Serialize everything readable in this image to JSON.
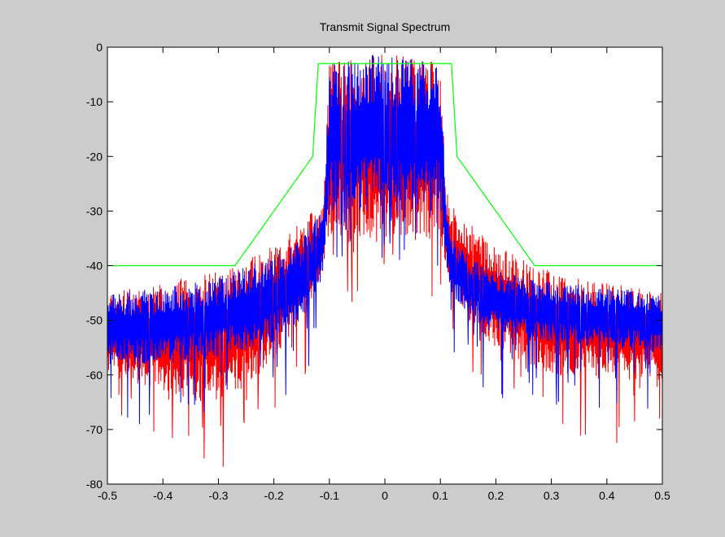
{
  "window": {
    "background": "#cccccc",
    "axes_background": "#ffffff"
  },
  "chart_data": {
    "type": "line",
    "title": "Transmit Signal Spectrum",
    "xlabel": "",
    "ylabel": "",
    "xlim": [
      -0.5,
      0.5
    ],
    "ylim": [
      -80,
      0
    ],
    "xticks": [
      "-0.5",
      "-0.4",
      "-0.3",
      "-0.2",
      "-0.1",
      "0",
      "0.1",
      "0.2",
      "0.3",
      "0.4",
      "0.5"
    ],
    "yticks": [
      "0",
      "-10",
      "-20",
      "-30",
      "-40",
      "-50",
      "-60",
      "-70",
      "-80"
    ],
    "grid": false,
    "series": [
      {
        "color": "#ff0000",
        "style": "noisy-spectrum",
        "envelope": {
          "x": [
            -0.5,
            -0.4,
            -0.3,
            -0.25,
            -0.2,
            -0.15,
            -0.12,
            -0.11,
            -0.1,
            0,
            0.1,
            0.11,
            0.12,
            0.15,
            0.2,
            0.25,
            0.3,
            0.4,
            0.5
          ],
          "upper": [
            -45,
            -43,
            -41,
            -39,
            -36,
            -32,
            -29,
            -27,
            -3,
            -1,
            -3,
            -26,
            -29,
            -32,
            -36,
            -39,
            -41,
            -43,
            -45
          ],
          "lower": [
            -60,
            -63,
            -66,
            -62,
            -57,
            -50,
            -44,
            -40,
            -35,
            -36,
            -35,
            -40,
            -44,
            -50,
            -55,
            -58,
            -60,
            -61,
            -61
          ]
        }
      },
      {
        "color": "#0000ff",
        "style": "noisy-spectrum",
        "envelope": {
          "x": [
            -0.5,
            -0.4,
            -0.3,
            -0.2,
            -0.15,
            -0.12,
            -0.11,
            -0.1,
            0,
            0.1,
            0.11,
            0.12,
            0.15,
            0.2,
            0.3,
            0.4,
            0.5
          ],
          "upper": [
            -45,
            -44,
            -42,
            -38,
            -35,
            -31,
            -28,
            -3,
            -1,
            -3,
            -28,
            -34,
            -38,
            -41,
            -43,
            -44,
            -45
          ],
          "lower": [
            -58,
            -58,
            -57,
            -54,
            -50,
            -45,
            -40,
            -30,
            -30,
            -30,
            -40,
            -45,
            -49,
            -52,
            -54,
            -55,
            -56
          ]
        }
      },
      {
        "color": "#00ff00",
        "style": "mask",
        "x": [
          -0.5,
          -0.27,
          -0.13,
          -0.12,
          0.12,
          0.13,
          0.27,
          0.5
        ],
        "y": [
          -40,
          -40,
          -20,
          -3,
          -3,
          -20,
          -40,
          -40
        ]
      }
    ]
  }
}
